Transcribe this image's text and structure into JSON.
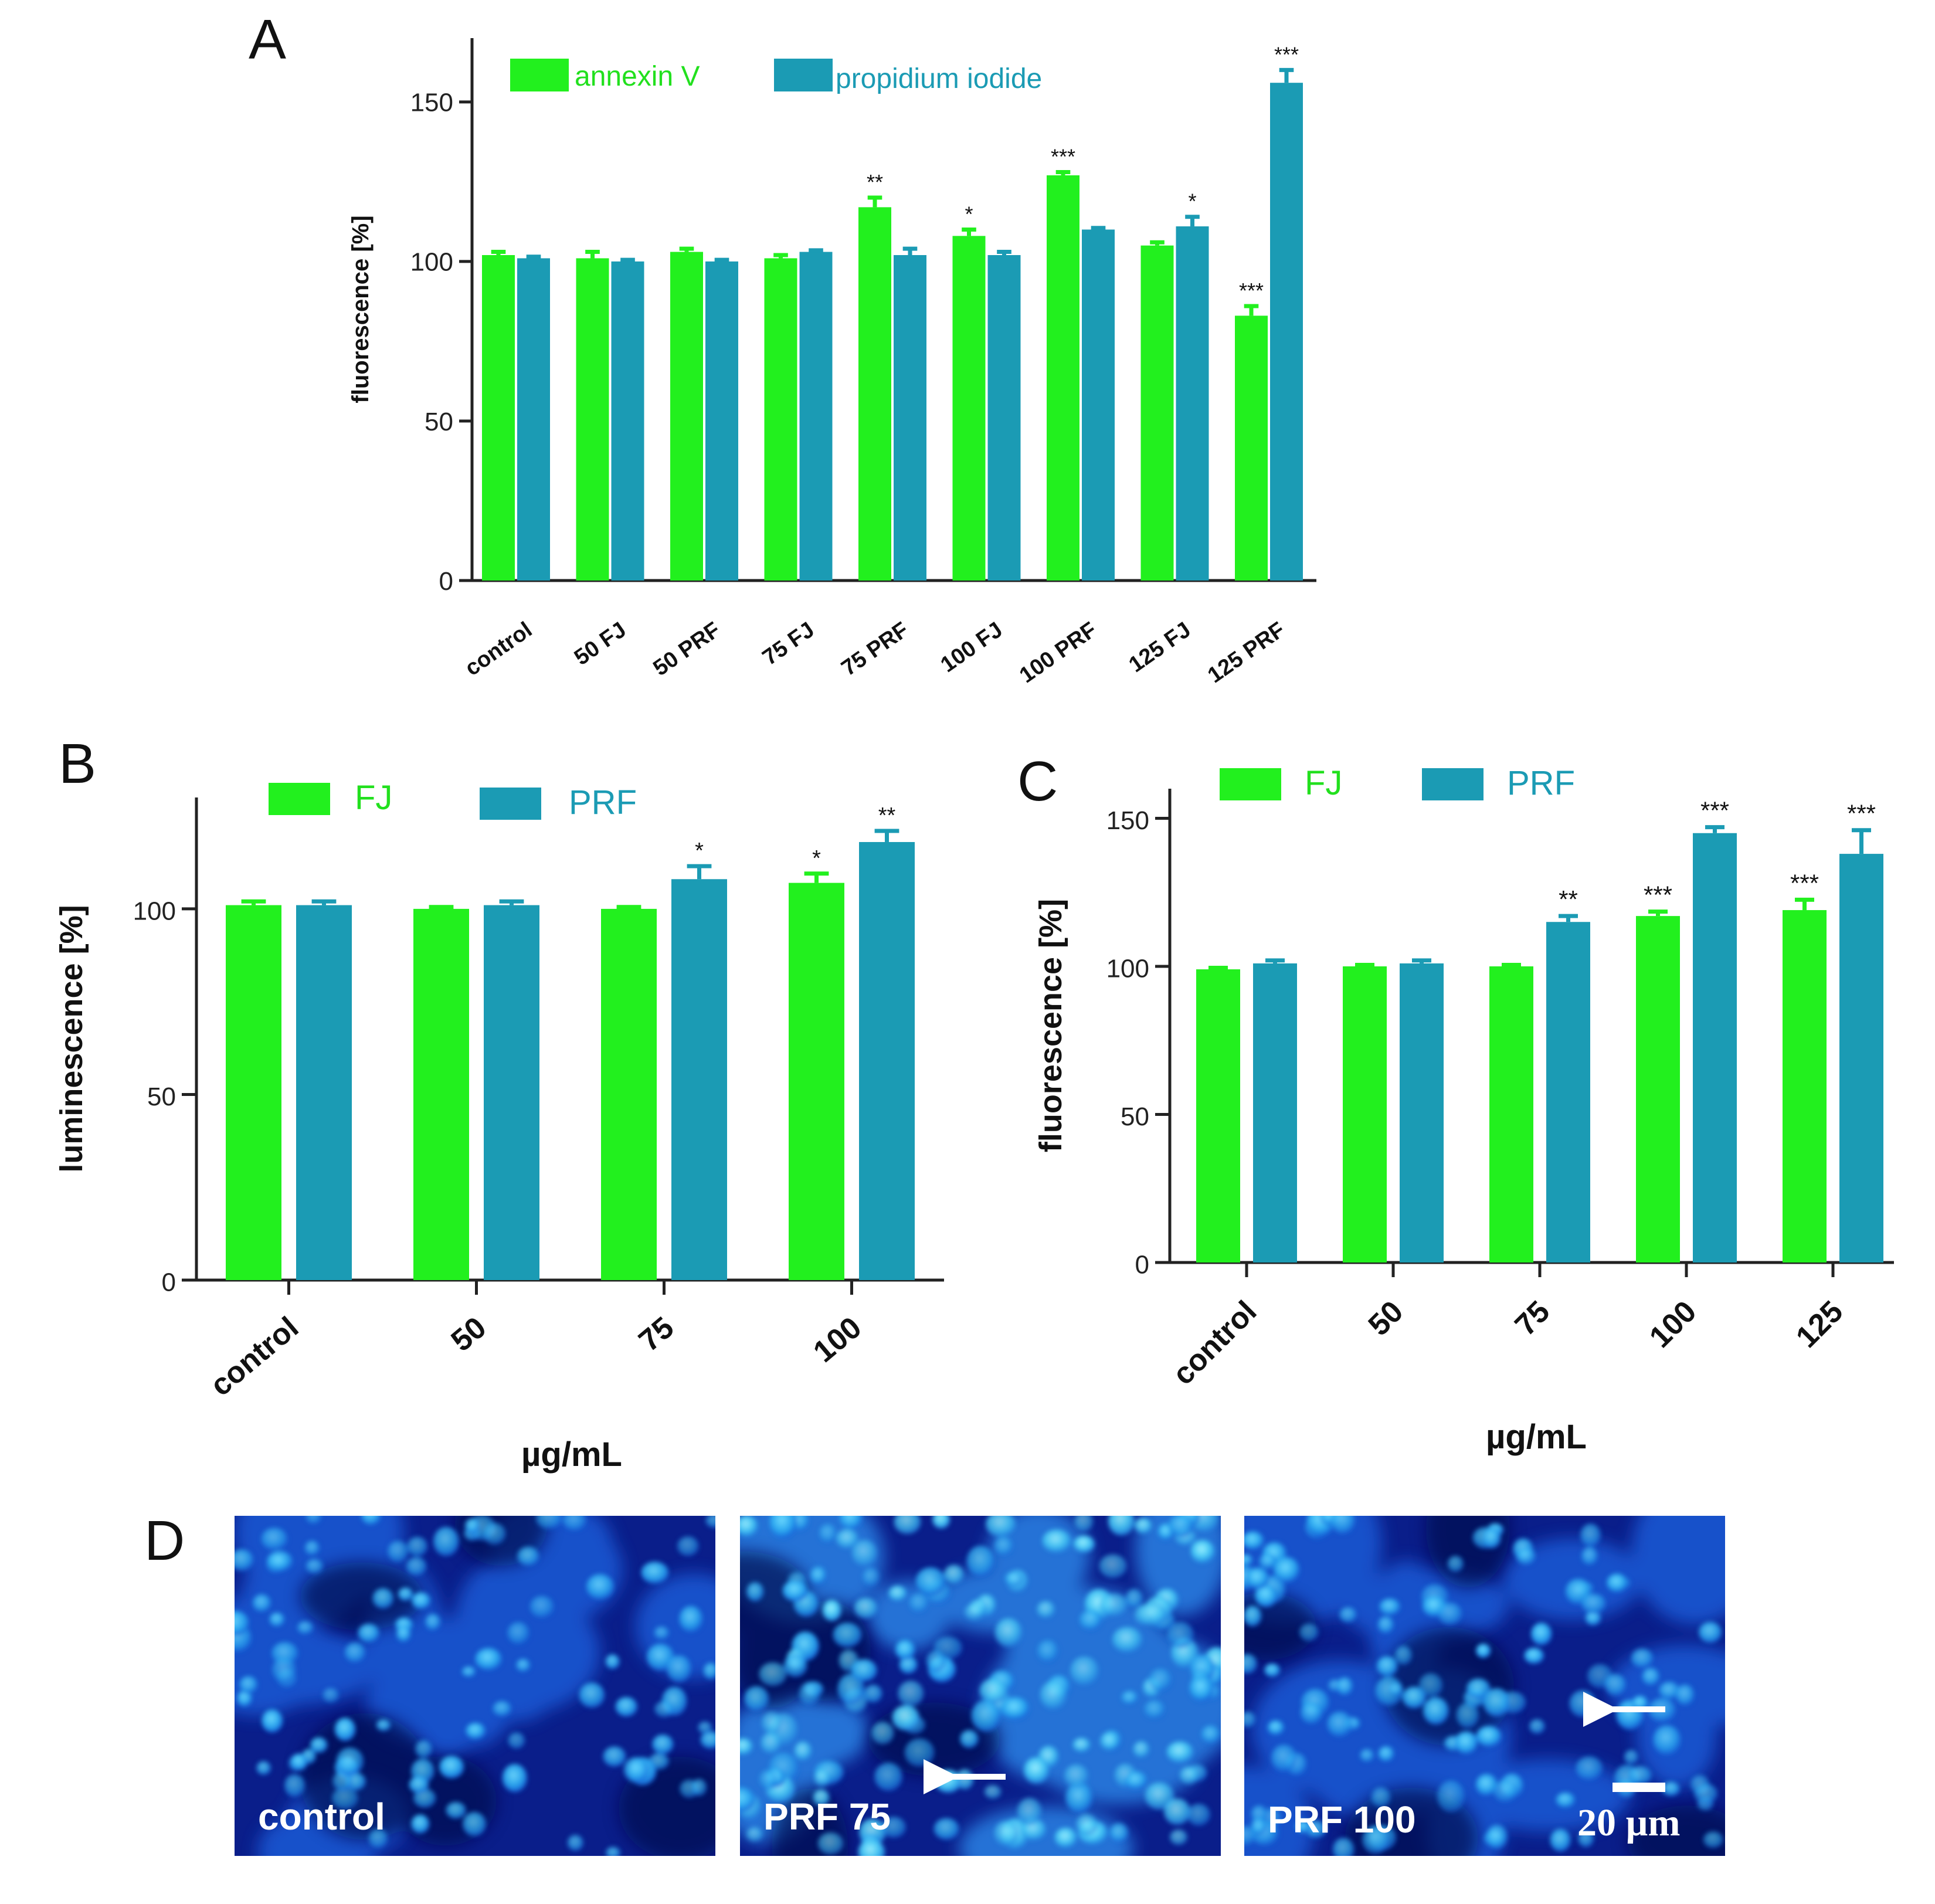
{
  "colors": {
    "green": "#22f01e",
    "teal": "#1b9bb4",
    "green_text": "#22e01e",
    "teal_text": "#1b9bb4"
  },
  "chart_data": [
    {
      "panel": "A",
      "type": "bar",
      "title": "",
      "ylabel": "fluorescence [%]",
      "xlabel": "",
      "ylim": [
        0,
        170
      ],
      "yticks": [
        0,
        50,
        100,
        150
      ],
      "legend": "top-left",
      "categories": [
        "control",
        "50 FJ",
        "50 PRF",
        "75 FJ",
        "75 PRF",
        "100 FJ",
        "100 PRF",
        "125 FJ",
        "125 PRF"
      ],
      "series": [
        {
          "name": "annexin V",
          "color": "green",
          "values": [
            102,
            101,
            103,
            101,
            117,
            108,
            127,
            105,
            83
          ],
          "errors": [
            1,
            2,
            1,
            1,
            3,
            2,
            1,
            1,
            3
          ],
          "stars": [
            "",
            "",
            "",
            "",
            "**",
            "*",
            "***",
            "",
            "***"
          ]
        },
        {
          "name": "propidium iodide",
          "color": "teal",
          "values": [
            101,
            100,
            100,
            103,
            102,
            102,
            110,
            111,
            156
          ],
          "errors": [
            0.5,
            0.5,
            0.5,
            0.5,
            2,
            1,
            0.5,
            3,
            4
          ],
          "stars": [
            "",
            "",
            "",
            "",
            "",
            "",
            "",
            "*",
            "***"
          ]
        }
      ]
    },
    {
      "panel": "B",
      "type": "bar",
      "title": "",
      "ylabel": "luminescence [%]",
      "xlabel": "µg/mL",
      "ylim": [
        0,
        130
      ],
      "yticks": [
        0,
        50,
        100
      ],
      "legend": "top-left",
      "categories": [
        "control",
        "50",
        "75",
        "100"
      ],
      "series": [
        {
          "name": "FJ",
          "color": "green",
          "values": [
            101,
            100,
            100,
            107
          ],
          "errors": [
            1,
            0.5,
            0.5,
            2.5
          ],
          "stars": [
            "",
            "",
            "",
            "*"
          ]
        },
        {
          "name": "PRF",
          "color": "teal",
          "values": [
            101,
            101,
            108,
            118
          ],
          "errors": [
            1,
            1,
            3.5,
            3
          ],
          "stars": [
            "",
            "",
            "*",
            "**"
          ]
        }
      ]
    },
    {
      "panel": "C",
      "type": "bar",
      "title": "",
      "ylabel": "fluorescence [%]",
      "xlabel": "µg/mL",
      "ylim": [
        0,
        160
      ],
      "yticks": [
        0,
        50,
        100,
        150
      ],
      "legend": "top-left",
      "categories": [
        "control",
        "50",
        "75",
        "100",
        "125"
      ],
      "series": [
        {
          "name": "FJ",
          "color": "green",
          "values": [
            99,
            100,
            100,
            117,
            119
          ],
          "errors": [
            0.5,
            0.5,
            0.5,
            1.5,
            3.5
          ],
          "stars": [
            "",
            "",
            "",
            "***",
            "***"
          ]
        },
        {
          "name": "PRF",
          "color": "teal",
          "values": [
            101,
            101,
            115,
            145,
            138
          ],
          "errors": [
            1,
            1,
            2,
            2,
            8
          ],
          "stars": [
            "",
            "",
            "**",
            "***",
            "***"
          ]
        }
      ]
    }
  ],
  "panels": {
    "a": "A",
    "b": "B",
    "c": "C",
    "d": "D"
  },
  "micrographs": [
    {
      "label": "control"
    },
    {
      "label": "PRF 75"
    },
    {
      "label": "PRF 100"
    }
  ],
  "scale_bar_label": "20 µm"
}
